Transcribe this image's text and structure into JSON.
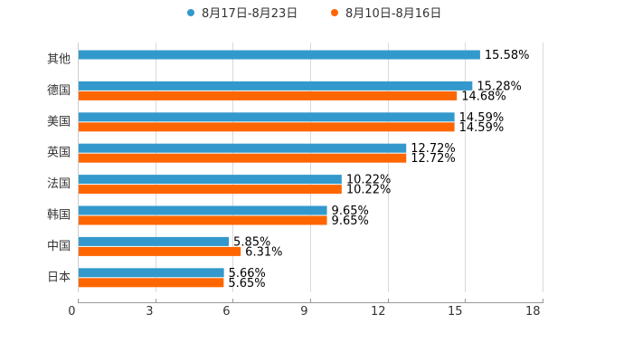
{
  "chart_data": {
    "type": "bar",
    "orientation": "horizontal",
    "title": "",
    "xlabel": "",
    "ylabel": "",
    "categories": [
      "其他",
      "德国",
      "美国",
      "英国",
      "法国",
      "韩国",
      "中国",
      "日本"
    ],
    "series": [
      {
        "name": "8月17日-8月23日",
        "color": "#3399cc",
        "values": [
          15.58,
          15.28,
          14.59,
          12.72,
          10.22,
          9.65,
          5.85,
          5.66
        ],
        "labels": [
          "15.58%",
          "15.28%",
          "14.59%",
          "12.72%",
          "10.22%",
          "9.65%",
          "5.85%",
          "5.66%"
        ]
      },
      {
        "name": "8月10日-8月16日",
        "color": "#ff6600",
        "values": [
          null,
          14.68,
          14.59,
          12.72,
          10.22,
          9.65,
          6.31,
          5.65
        ],
        "labels": [
          "",
          "14.68%",
          "14.59%",
          "12.72%",
          "10.22%",
          "9.65%",
          "6.31%",
          "5.65%"
        ]
      }
    ],
    "xlim": [
      0,
      18
    ],
    "ticks": [
      0,
      3,
      6,
      9,
      12,
      15,
      18
    ],
    "tick_labels": [
      "0",
      "3",
      "6",
      "9",
      "12",
      "15",
      "18"
    ],
    "grid": true,
    "legend_position": "top-center"
  }
}
